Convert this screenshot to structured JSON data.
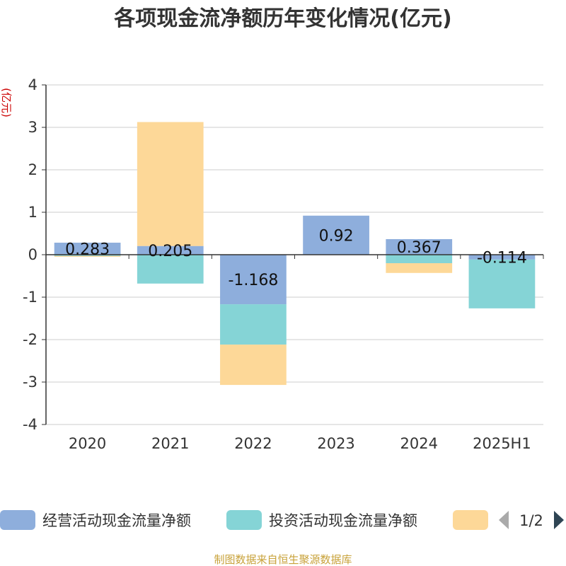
{
  "chart_data": {
    "type": "bar",
    "stacked": true,
    "title": "各项现金流净额历年变化情况(亿元)",
    "ylabel": "(亿元)",
    "categories": [
      "2020",
      "2021",
      "2022",
      "2023",
      "2024",
      "2025H1"
    ],
    "ylim": [
      -4,
      4
    ],
    "yticks": [
      4,
      3,
      2,
      1,
      0,
      -1,
      -2,
      -3,
      -4
    ],
    "grid": true,
    "legend_position": "bottom",
    "series": [
      {
        "name": "经营活动现金流量净额",
        "color": "#8eaedc",
        "values": [
          0.283,
          0.205,
          -1.168,
          0.92,
          0.367,
          -0.114
        ]
      },
      {
        "name": "投资活动现金流量净额",
        "color": "#85d4d6",
        "values": [
          -0.03,
          -0.68,
          -0.95,
          0.0,
          -0.2,
          -1.15
        ]
      },
      {
        "name": "",
        "color": "#fdd898",
        "values": [
          -0.02,
          2.92,
          -0.95,
          0.0,
          -0.23,
          0.0
        ]
      }
    ],
    "data_labels": [
      "0.283",
      "0.205",
      "-1.168",
      "0.92",
      "0.367",
      "-0.114"
    ]
  },
  "legend": {
    "page_indicator": "1/2"
  },
  "source": "制图数据来自恒生聚源数据库"
}
